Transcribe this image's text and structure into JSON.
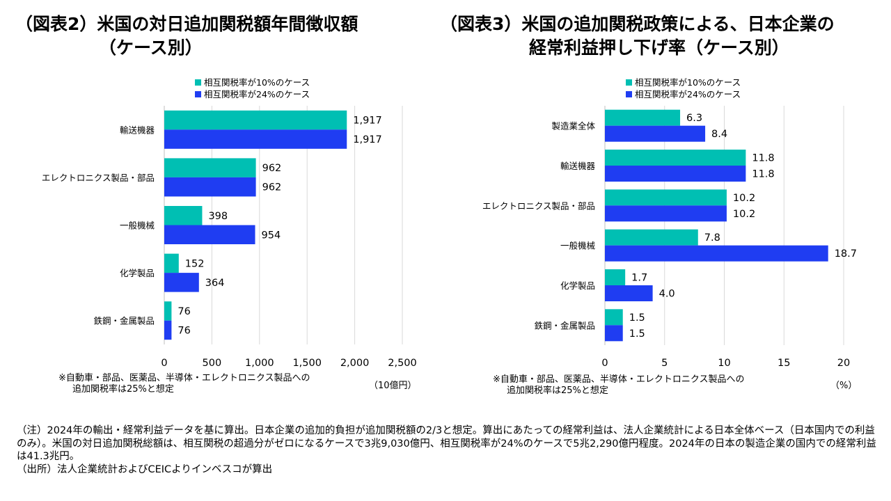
{
  "colors": {
    "s1": "#00BFB3",
    "s2": "#1F3DF2",
    "axis": "#000000",
    "grid": "#D9D9D9"
  },
  "chart_data": [
    {
      "type": "bar",
      "orientation": "horizontal",
      "title": "（図表2）米国の対日追加関税額年間徴収額",
      "title_line2": "（ケース別）",
      "categories": [
        "輸送機器",
        "エレクトロニクス製品・部品",
        "一般機械",
        "化学製品",
        "鉄鋼・金属製品"
      ],
      "series": [
        {
          "name": "相互関税率が10%のケース",
          "values": [
            1917,
            962,
            398,
            152,
            76
          ],
          "labels": [
            "1,917",
            "962",
            "398",
            "152",
            "76"
          ]
        },
        {
          "name": "相互関税率が24%のケース",
          "values": [
            1917,
            962,
            954,
            364,
            76
          ],
          "labels": [
            "1,917",
            "962",
            "954",
            "364",
            "76"
          ]
        }
      ],
      "xlim": [
        0,
        2500
      ],
      "ticks": [
        0,
        500,
        1000,
        1500,
        2000,
        2500
      ],
      "tick_labels": [
        "0",
        "500",
        "1,000",
        "1,500",
        "2,000",
        "2,500"
      ],
      "unit": "（10億円）",
      "note_line1": "※自動車・部品、医薬品、半導体・エレクトロニクス製品への",
      "note_line2": "追加関税率は25%と想定",
      "grid": true,
      "legend_position": "top"
    },
    {
      "type": "bar",
      "orientation": "horizontal",
      "title": "（図表3）米国の追加関税政策による、日本企業の",
      "title_line2": "経常利益押し下げ率（ケース別）",
      "categories": [
        "製造業全体",
        "輸送機器",
        "エレクトロニクス製品・部品",
        "一般機械",
        "化学製品",
        "鉄鋼・金属製品"
      ],
      "series": [
        {
          "name": "相互関税率が10%のケース",
          "values": [
            6.3,
            11.8,
            10.2,
            7.8,
            1.7,
            1.5
          ],
          "labels": [
            "6.3",
            "11.8",
            "10.2",
            "7.8",
            "1.7",
            "1.5"
          ]
        },
        {
          "name": "相互関税率が24%のケース",
          "values": [
            8.4,
            11.8,
            10.2,
            18.7,
            4.0,
            1.5
          ],
          "labels": [
            "8.4",
            "11.8",
            "10.2",
            "18.7",
            "4.0",
            "1.5"
          ]
        }
      ],
      "xlim": [
        0,
        20
      ],
      "ticks": [
        0,
        5,
        10,
        15,
        20
      ],
      "tick_labels": [
        "0",
        "5",
        "10",
        "15",
        "20"
      ],
      "unit": "（%）",
      "note_line1": "※自動車・部品、医薬品、半導体・エレクトロニクス製品への",
      "note_line2": "追加関税率は25%と想定",
      "grid": true,
      "legend_position": "top"
    }
  ],
  "footer": {
    "line1": "（注）2024年の輸出・経常利益データを基に算出。日本企業の追加的負担が追加関税額の2/3と想定。算出にあたっての経常利益は、法人企業統計による日本全体ベース（日本国内での利益のみ）。米国の対日追加関税総額は、相互関税の超過分がゼロになるケースで3兆9,030億円、相互関税率が24%のケースで5兆2,290億円程度。2024年の日本の製造企業の国内での経常利益は41.3兆円。",
    "line2": "（出所）法人企業統計およびCEICよりインベスコが算出"
  }
}
